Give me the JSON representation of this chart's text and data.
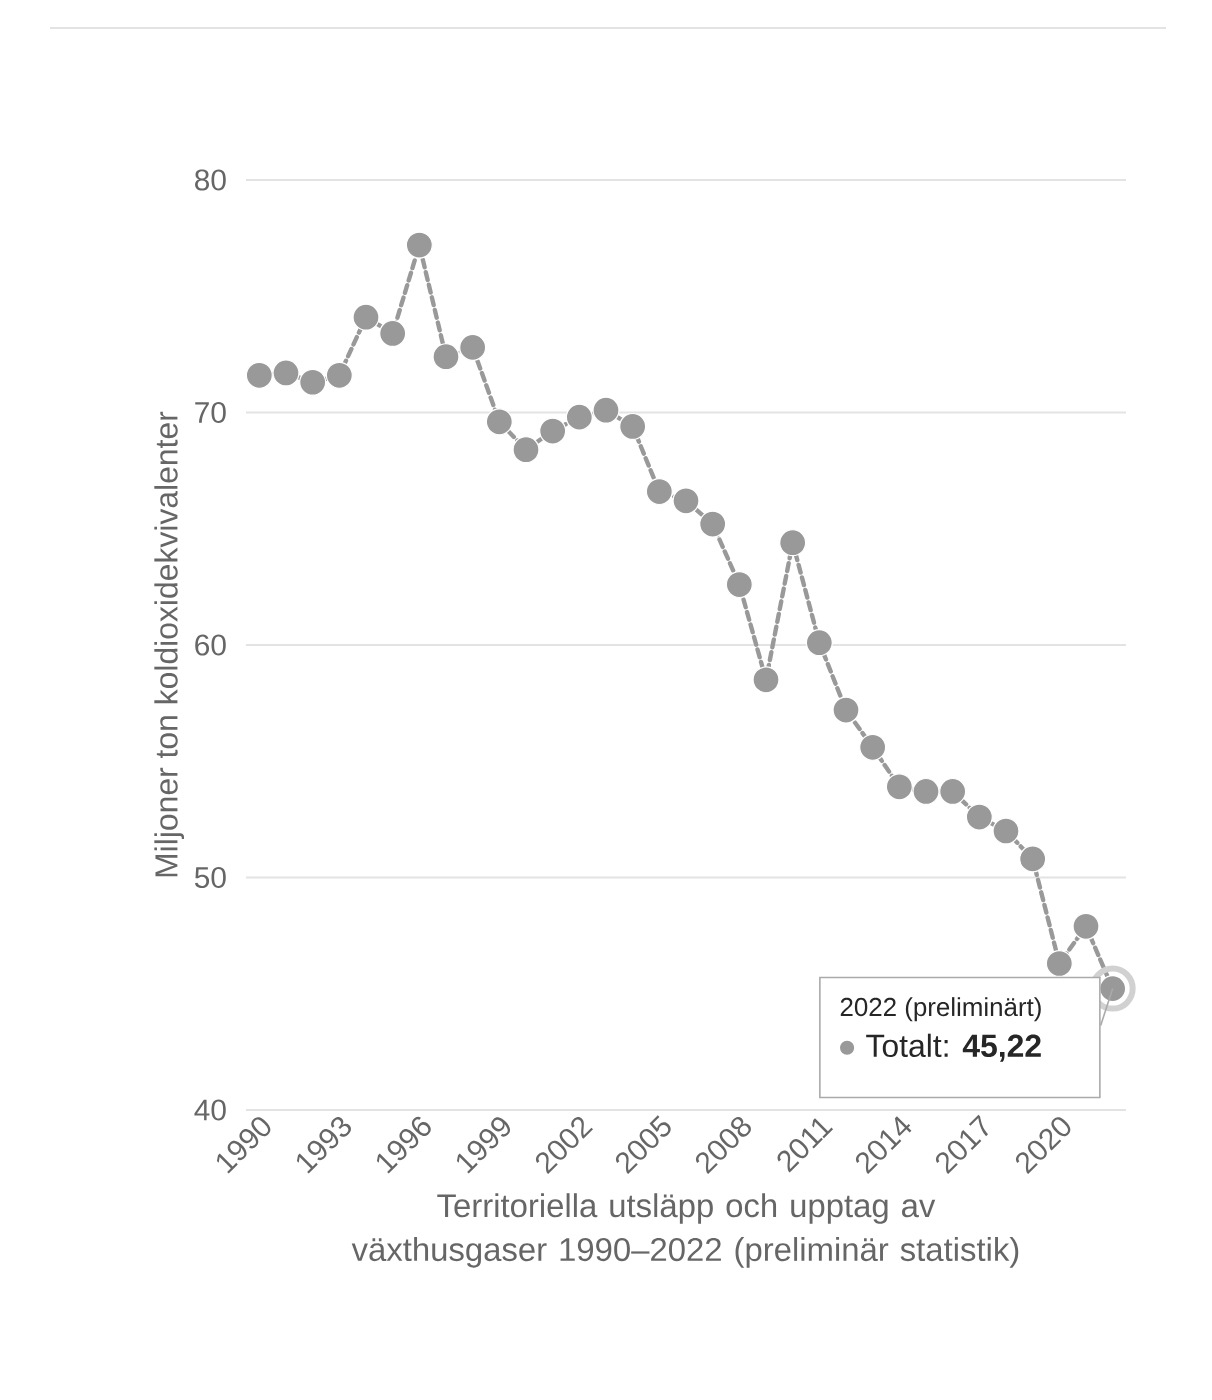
{
  "chart_data": {
    "type": "line",
    "xlabel": "Territoriella utsläpp och upptag av växthusgaser 1990–2022 (preliminär statistik)",
    "ylabel": "Miljoner ton koldioxidekvivalenter",
    "x": [
      1990,
      1991,
      1992,
      1993,
      1994,
      1995,
      1996,
      1997,
      1998,
      1999,
      2000,
      2001,
      2002,
      2003,
      2004,
      2005,
      2006,
      2007,
      2008,
      2009,
      2010,
      2011,
      2012,
      2013,
      2014,
      2015,
      2016,
      2017,
      2018,
      2019,
      2020,
      2021,
      2022
    ],
    "series": [
      {
        "color": "#999999",
        "values": [
          71.6,
          71.7,
          71.3,
          71.6,
          74.1,
          73.4,
          77.2,
          72.4,
          72.8,
          69.6,
          68.4,
          69.2,
          69.8,
          70.1,
          69.4,
          66.6,
          66.2,
          65.2,
          62.6,
          58.5,
          64.4,
          60.1,
          57.2,
          55.6,
          53.9,
          53.7,
          53.7,
          52.6,
          52.0,
          50.8,
          46.3,
          47.9,
          45.22
        ]
      }
    ],
    "xlim": [
      1989.5,
      2022.5
    ],
    "ylim": [
      40,
      80
    ],
    "xticks": [
      1990,
      1993,
      1996,
      1999,
      2002,
      2005,
      2008,
      2011,
      2014,
      2017,
      2020
    ],
    "yticks": [
      40,
      50,
      60,
      70,
      80
    ],
    "grid": "y",
    "marker": "circle",
    "line_style": "dashed",
    "annotations": [
      {
        "text": "2022 (preliminärt)",
        "x": 2022,
        "y": 45.22
      },
      "Totalt: **45,22**"
    ]
  }
}
